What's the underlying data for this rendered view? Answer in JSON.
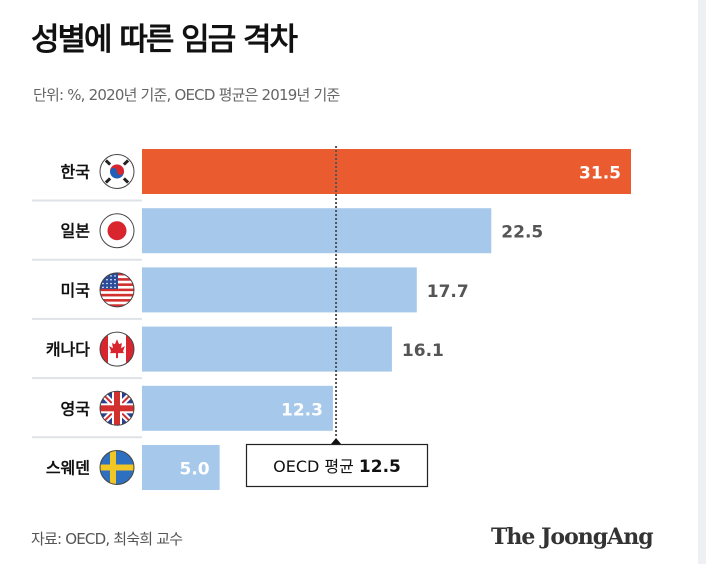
{
  "title": "성별에 따른 임금 격차",
  "subtitle": "단위: %, 2020년 기준, OECD 평균은 2019년 기준",
  "source": "자료: OECD, 최숙희 교수",
  "brand": "The JoongAng",
  "chart_data": {
    "type": "bar",
    "orientation": "horizontal",
    "title": "성별에 따른 임금 격차",
    "subtitle": "단위: %, 2020년 기준, OECD 평균은 2019년 기준",
    "xlabel": "",
    "ylabel": "",
    "xlim": [
      0,
      31.5
    ],
    "grid": false,
    "categories": [
      "한국",
      "일본",
      "미국",
      "캐나다",
      "영국",
      "스웨덴"
    ],
    "flags": [
      "korea-flag",
      "japan-flag",
      "usa-flag",
      "canada-flag",
      "uk-flag",
      "sweden-flag"
    ],
    "values": [
      31.5,
      22.5,
      17.7,
      16.1,
      12.3,
      5.0
    ],
    "value_labels": [
      "31.5",
      "22.5",
      "17.7",
      "16.1",
      "12.3",
      "5.0"
    ],
    "highlight_index": 0,
    "colors": {
      "highlight": "#eb5b30",
      "default": "#a6c8ea",
      "label_inside": "#ffffff",
      "label_outside": "#555555"
    },
    "reference_line": {
      "label": "OECD 평균",
      "value": 12.5,
      "value_label": "12.5"
    },
    "source": "자료: OECD, 최숙희 교수"
  }
}
